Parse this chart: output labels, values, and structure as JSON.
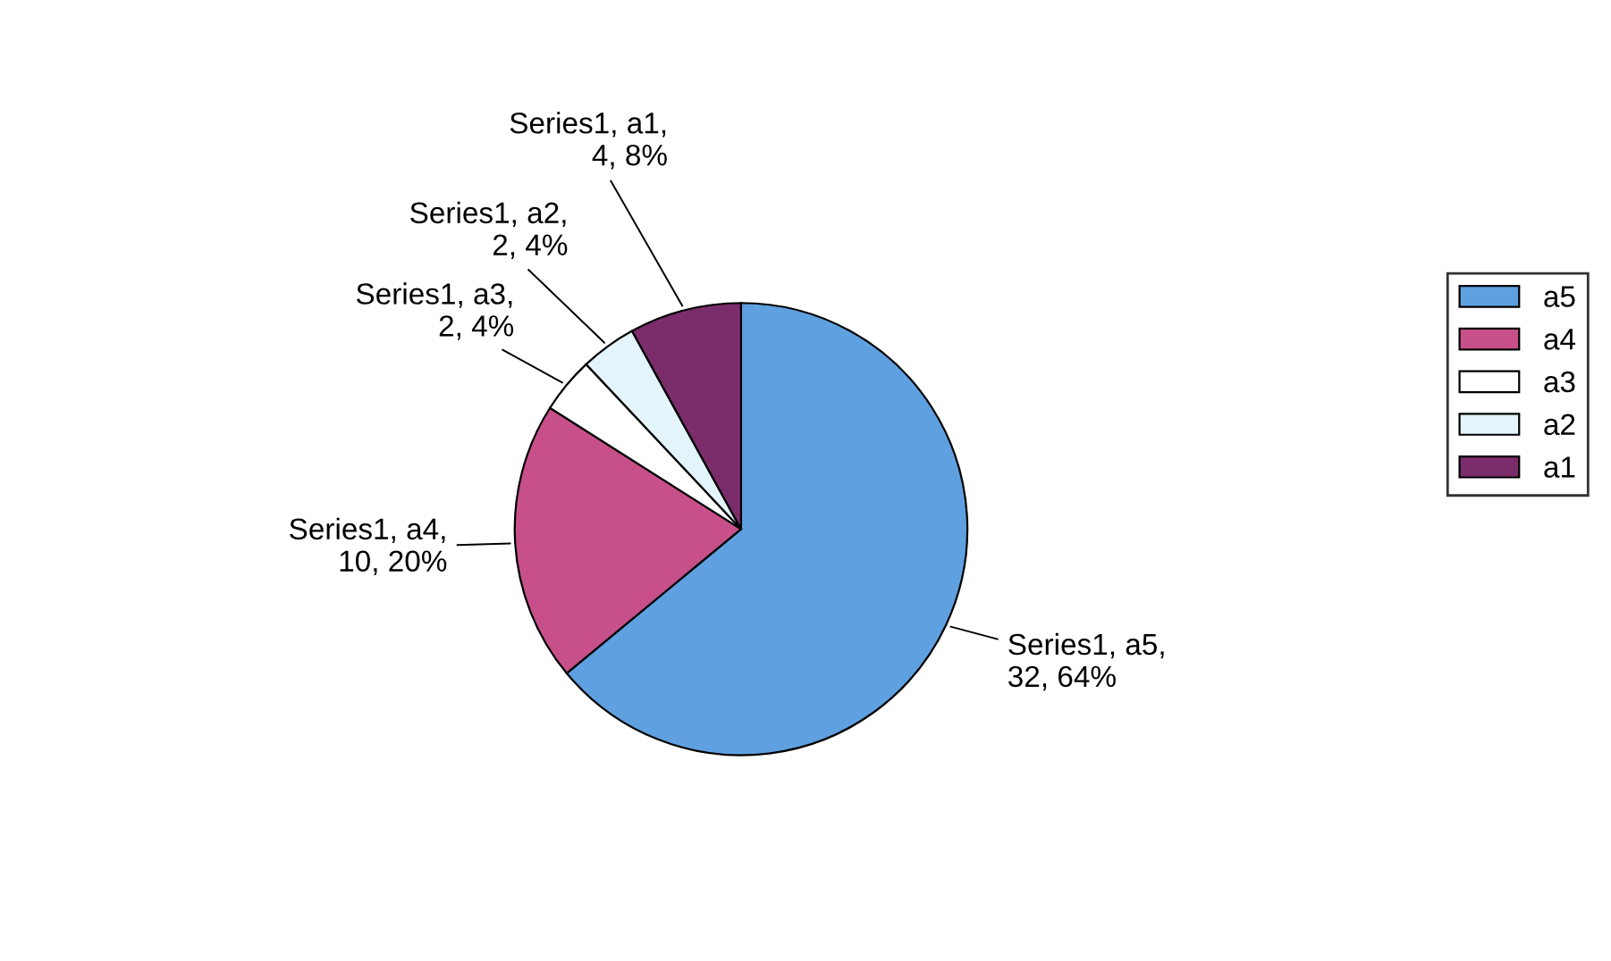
{
  "chart_data": {
    "type": "pie",
    "categories": [
      "a5",
      "a4",
      "a3",
      "a2",
      "a1"
    ],
    "values": [
      32,
      10,
      2,
      2,
      4
    ],
    "colors": [
      "#5fa0e0",
      "#c8508a",
      "#ffffff",
      "#e4f4fb",
      "#7b2d6b"
    ],
    "value_labels": [
      "Series1, a5,\n32, 64%",
      "Series1, a4,\n10, 20%",
      "Series1, a3,\n2, 4%",
      "Series1, a2,\n2, 4%",
      "Series1, a1,\n4, 8%"
    ],
    "legend": "right"
  }
}
